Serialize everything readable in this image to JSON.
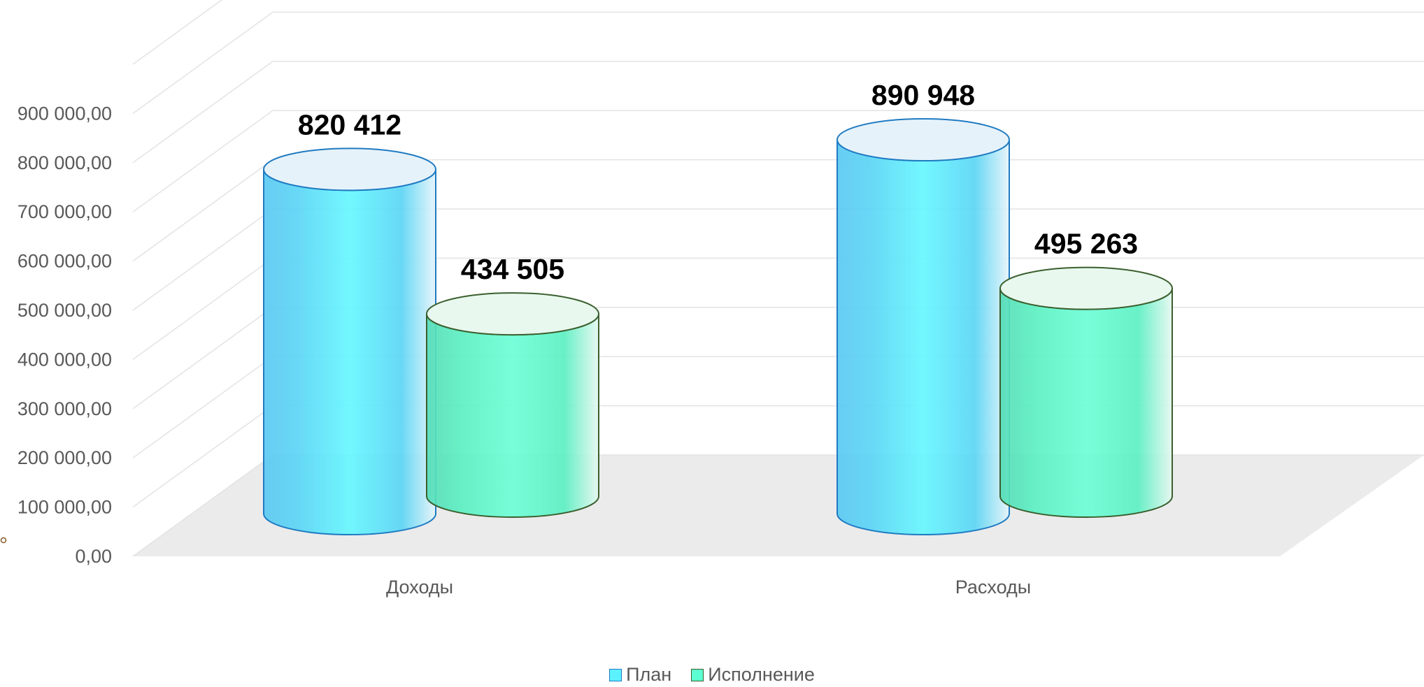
{
  "chart_data": {
    "type": "bar",
    "style": "3d-cylinder",
    "categories": [
      "Доходы",
      "Расходы"
    ],
    "series": [
      {
        "name": "План",
        "values": [
          820412,
          890948
        ],
        "data_labels": [
          "820 412",
          "890 948"
        ],
        "color": "#5CF1FF",
        "edge": "#1F7BC2"
      },
      {
        "name": "Исполнение",
        "values": [
          434505,
          495263
        ],
        "data_labels": [
          "434 505",
          "495 263"
        ],
        "color": "#5CFFD1",
        "edge": "#3A5F2E"
      }
    ],
    "y_ticks": [
      "0,00",
      "100 000,00",
      "200 000,00",
      "300 000,00",
      "400 000,00",
      "500 000,00",
      "600 000,00",
      "700 000,00",
      "800 000,00",
      "900 000,00"
    ],
    "ylim": [
      0,
      1000000
    ],
    "grid": true,
    "floor_color": "#EBEBEB",
    "legend_position": "bottom"
  }
}
